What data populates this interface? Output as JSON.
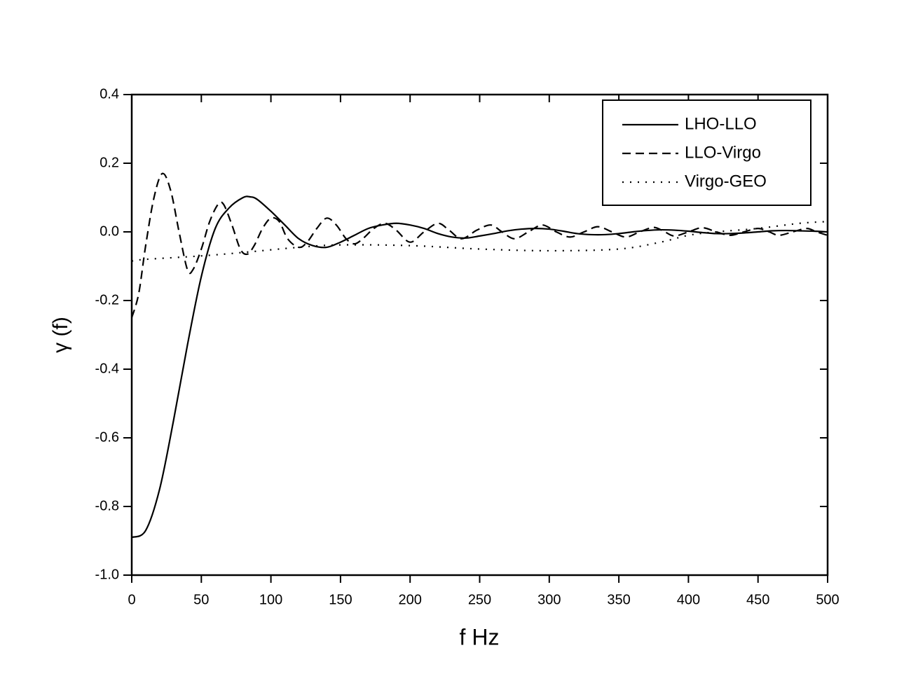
{
  "chart_data": {
    "type": "line",
    "xlabel": "f Hz",
    "ylabel": "γ (f)",
    "xlim": [
      0,
      500
    ],
    "ylim": [
      -1.0,
      0.4
    ],
    "xticks": [
      0,
      50,
      100,
      150,
      200,
      250,
      300,
      350,
      400,
      450,
      500
    ],
    "yticks": [
      {
        "value": -1.0,
        "label": "-1.0"
      },
      -0.8,
      -0.6,
      -0.4,
      -0.2,
      {
        "value": 0,
        "label": "0.0"
      },
      0.2,
      0.4
    ],
    "legend": "upper right",
    "series": [
      {
        "name": "LHO-LLO",
        "color": "#000000",
        "dash": "solid",
        "x": [
          0,
          10,
          20,
          30,
          40,
          50,
          60,
          70,
          80,
          85,
          90,
          100,
          110,
          120,
          130,
          140,
          150,
          160,
          170,
          180,
          190,
          200,
          210,
          220,
          230,
          240,
          250,
          260,
          270,
          280,
          290,
          300,
          310,
          320,
          330,
          340,
          350,
          360,
          370,
          380,
          390,
          400,
          410,
          420,
          430,
          440,
          450,
          460,
          470,
          480,
          490,
          500
        ],
        "values": [
          -0.89,
          -0.87,
          -0.75,
          -0.55,
          -0.33,
          -0.13,
          0.01,
          0.07,
          0.1,
          0.102,
          0.095,
          0.06,
          0.02,
          -0.02,
          -0.04,
          -0.045,
          -0.03,
          -0.01,
          0.01,
          0.02,
          0.025,
          0.02,
          0.01,
          -0.005,
          -0.015,
          -0.018,
          -0.012,
          -0.005,
          0.003,
          0.008,
          0.01,
          0.008,
          0.002,
          -0.005,
          -0.008,
          -0.008,
          -0.005,
          0,
          0.004,
          0.006,
          0.005,
          0.002,
          -0.002,
          -0.005,
          -0.005,
          -0.003,
          0,
          0.003,
          0.004,
          0.003,
          0.002,
          0
        ]
      },
      {
        "name": "LLO-Virgo",
        "color": "#000000",
        "dash": "dashed",
        "x": [
          0,
          5,
          10,
          16,
          22,
          28,
          34,
          40,
          44,
          50,
          56,
          62,
          66,
          72,
          78,
          83,
          88,
          94,
          100,
          106,
          112,
          120,
          126,
          133,
          140,
          147,
          154,
          160,
          166,
          174,
          182,
          190,
          200,
          210,
          220,
          228,
          237,
          248,
          258,
          266,
          275,
          285,
          295,
          305,
          315,
          325,
          335,
          345,
          355,
          365,
          375,
          383,
          390,
          400,
          410,
          420,
          430,
          440,
          450,
          458,
          465,
          475,
          485,
          492,
          500
        ],
        "values": [
          -0.25,
          -0.18,
          -0.04,
          0.1,
          0.17,
          0.12,
          0.0,
          -0.11,
          -0.11,
          -0.05,
          0.03,
          0.08,
          0.08,
          0.02,
          -0.05,
          -0.065,
          -0.04,
          0.01,
          0.04,
          0.03,
          -0.02,
          -0.045,
          -0.03,
          0.01,
          0.04,
          0.02,
          -0.02,
          -0.035,
          -0.02,
          0.01,
          0.025,
          0.005,
          -0.03,
          0,
          0.025,
          0.005,
          -0.02,
          0.005,
          0.02,
          0,
          -0.02,
          0,
          0.02,
          0,
          -0.015,
          0,
          0.015,
          0,
          -0.015,
          0,
          0.013,
          0,
          -0.012,
          0,
          0.012,
          0,
          -0.01,
          0,
          0.01,
          0,
          -0.01,
          0,
          0.01,
          0,
          -0.01
        ]
      },
      {
        "name": "Virgo-GEO",
        "color": "#000000",
        "dash": "dotted",
        "x": [
          0,
          10,
          50,
          80,
          120,
          150,
          200,
          250,
          300,
          350,
          380,
          400,
          420,
          450,
          480,
          500
        ],
        "values": [
          -0.085,
          -0.08,
          -0.07,
          -0.06,
          -0.045,
          -0.038,
          -0.04,
          -0.05,
          -0.055,
          -0.05,
          -0.03,
          -0.01,
          0,
          0.01,
          0.025,
          0.03
        ]
      }
    ]
  }
}
